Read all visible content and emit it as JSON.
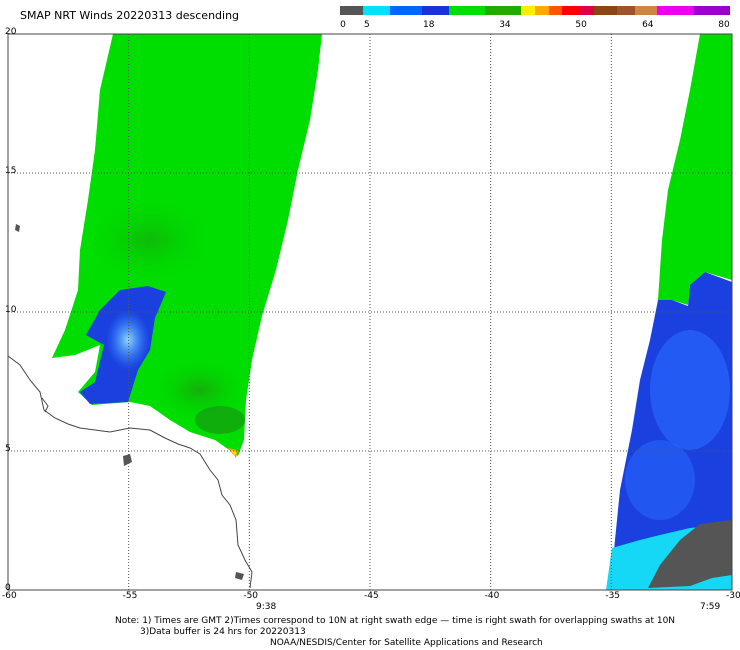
{
  "title": "SMAP NRT Winds  20220313 descending",
  "colorbar": {
    "segments": [
      {
        "color": "#555555",
        "weight": 5
      },
      {
        "color": "#00e0ff",
        "weight": 6
      },
      {
        "color": "#0066ff",
        "weight": 7
      },
      {
        "color": "#1a33d9",
        "weight": 6
      },
      {
        "color": "#00dd00",
        "weight": 8
      },
      {
        "color": "#22aa00",
        "weight": 8
      },
      {
        "color": "#ffee00",
        "weight": 3
      },
      {
        "color": "#ffaa00",
        "weight": 3
      },
      {
        "color": "#ff5500",
        "weight": 3
      },
      {
        "color": "#ff0000",
        "weight": 4
      },
      {
        "color": "#dd0044",
        "weight": 3
      },
      {
        "color": "#8b4513",
        "weight": 5
      },
      {
        "color": "#a0522d",
        "weight": 4
      },
      {
        "color": "#cd853f",
        "weight": 5
      },
      {
        "color": "#ee00ee",
        "weight": 8
      },
      {
        "color": "#9900cc",
        "weight": 8
      }
    ],
    "labels": [
      "0",
      "5",
      "18",
      "34",
      "50",
      "64",
      "80"
    ],
    "label_values": [
      0,
      5,
      18,
      34,
      50,
      64,
      80
    ]
  },
  "map": {
    "lon_range": [
      -60,
      -30
    ],
    "lat_range": [
      0,
      20
    ],
    "lon_ticks": [
      "-60",
      "-55",
      "-50",
      "-45",
      "-40",
      "-35",
      "-30"
    ],
    "lat_ticks": [
      "0",
      "5",
      "10",
      "15",
      "20"
    ],
    "grid": "dotted",
    "swath_times": [
      "9:38",
      "7:59"
    ]
  },
  "notes": {
    "line1": "Note: 1) Times are GMT 2)Times correspond to 10N at right swath edge — time is right swath for overlapping swaths at 10N",
    "line2": "3)Data buffer is 24 hrs for 20220313",
    "line3": "NOAA/NESDIS/Center for Satellite Applications and Research"
  }
}
